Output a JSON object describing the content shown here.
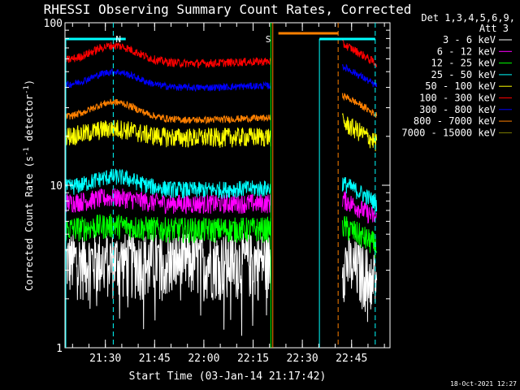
{
  "chart_data": {
    "type": "line",
    "title": "RHESSI Observing Summary Count Rates, Corrected",
    "xlabel": "Start Time (03-Jan-14 21:17:42)",
    "ylabel_main": "Corrected Count Rate (s",
    "ylabel_sup1": "-1",
    "ylabel_mid": " detector",
    "ylabel_sup2": "-1",
    "ylabel_end": ")",
    "y_scale": "log",
    "ylim": [
      1,
      100
    ],
    "xlim_minutes": [
      0,
      99
    ],
    "y_tick_labels": [
      "1",
      "10",
      "100"
    ],
    "x_ticks": [
      {
        "min": 12.3,
        "label": "21:30"
      },
      {
        "min": 27.3,
        "label": "21:45"
      },
      {
        "min": 42.3,
        "label": "22:00"
      },
      {
        "min": 57.3,
        "label": "22:15"
      },
      {
        "min": 72.3,
        "label": "22:30"
      },
      {
        "min": 87.3,
        "label": "22:45"
      }
    ],
    "legend_header": [
      "Det 1,3,4,5,6,9,",
      "Att 3"
    ],
    "legend_position": "right",
    "gaps_minutes": [
      [
        62.7,
        84.5
      ]
    ],
    "series": [
      {
        "name": "3 - 6 keV",
        "color": "#ffffff",
        "base": 3.5,
        "noise": 0.45,
        "bump": 0.0,
        "post": 0.0
      },
      {
        "name": "6 - 12 keV",
        "color": "#ff00ff",
        "base": 7.8,
        "noise": 0.14,
        "bump": 0.08,
        "post": 0.06
      },
      {
        "name": "12 - 25 keV",
        "color": "#00ff00",
        "base": 5.4,
        "noise": 0.18,
        "bump": 0.05,
        "post": 0.05
      },
      {
        "name": "25 - 50 keV",
        "color": "#00ffff",
        "base": 9.6,
        "noise": 0.12,
        "bump": 0.18,
        "post": 0.08
      },
      {
        "name": "50 - 100 keV",
        "color": "#ffff00",
        "base": 20.0,
        "noise": 0.14,
        "bump": 0.12,
        "post": 0.22
      },
      {
        "name": "100 - 300 keV",
        "color": "#ff0000",
        "base": 58.0,
        "noise": 0.06,
        "bump": 0.25,
        "post": 0.28
      },
      {
        "name": "300 - 800 keV",
        "color": "#0000ff",
        "base": 41.0,
        "noise": 0.05,
        "bump": 0.22,
        "post": 0.32
      },
      {
        "name": "800 - 7000 keV",
        "color": "#ff8000",
        "base": 26.0,
        "noise": 0.05,
        "bump": 0.25,
        "post": 0.38
      },
      {
        "name": "7000 - 15000 keV",
        "color": "#808000",
        "base": 0.0,
        "noise": 0.0,
        "bump": 0.0,
        "post": 0.0
      }
    ],
    "markers": [
      {
        "label": "N",
        "color": "#00ffff",
        "min": 14.7
      },
      {
        "label": "S",
        "color": "#ff8000",
        "min": 63.3
      }
    ]
  },
  "footer_timestamp": "18-Oct-2021 12:27"
}
